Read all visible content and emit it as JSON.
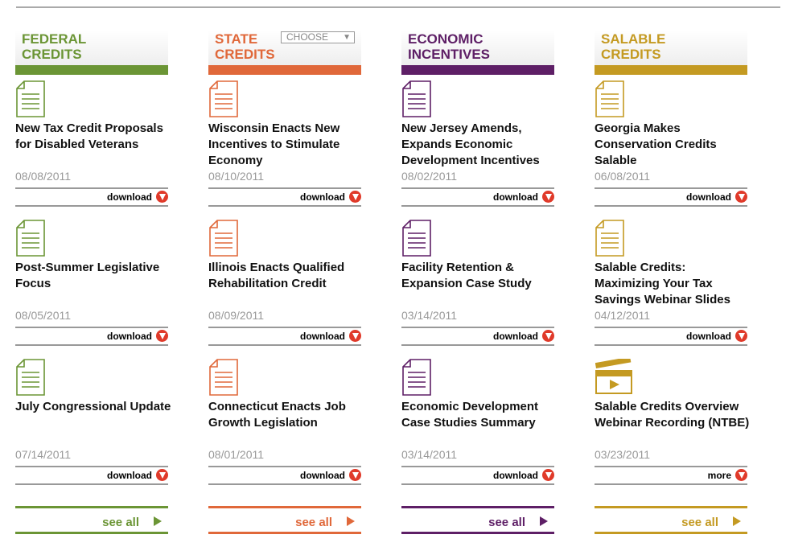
{
  "colors": {
    "federal": "#6b9535",
    "state": "#e0683a",
    "economic": "#5e1f66",
    "salable": "#c49a22"
  },
  "choose_label": "CHOOSE",
  "columns": [
    {
      "key": "federal",
      "title": [
        "FEDERAL",
        "CREDITS"
      ],
      "see_all": "see all",
      "items": [
        {
          "icon": "document-icon",
          "title": "New Tax Credit Proposals for Disabled Veterans",
          "date": "08/08/2011",
          "action": "download"
        },
        {
          "icon": "document-icon",
          "title": "Post-Summer Legislative Focus",
          "date": "08/05/2011",
          "action": "download"
        },
        {
          "icon": "document-icon",
          "title": "July Congressional Update",
          "date": "07/14/2011",
          "action": "download"
        }
      ]
    },
    {
      "key": "state",
      "title": [
        "STATE",
        "CREDITS"
      ],
      "see_all": "see all",
      "items": [
        {
          "icon": "document-icon",
          "title": "Wisconsin Enacts New Incentives to Stimulate Economy",
          "date": "08/10/2011",
          "action": "download"
        },
        {
          "icon": "document-icon",
          "title": "Illinois Enacts Qualified Rehabilitation Credit",
          "date": "08/09/2011",
          "action": "download"
        },
        {
          "icon": "document-icon",
          "title": "Connecticut Enacts Job Growth Legislation",
          "date": "08/01/2011",
          "action": "download"
        }
      ]
    },
    {
      "key": "economic",
      "title": [
        "ECONOMIC",
        "INCENTIVES"
      ],
      "see_all": "see all",
      "items": [
        {
          "icon": "document-icon",
          "title": "New Jersey Amends, Expands Economic Development Incentives",
          "date": "08/02/2011",
          "action": "download"
        },
        {
          "icon": "document-icon",
          "title": "Facility Retention & Expansion Case Study",
          "date": "03/14/2011",
          "action": "download"
        },
        {
          "icon": "document-icon",
          "title": "Economic Development Case Studies Summary",
          "date": "03/14/2011",
          "action": "download"
        }
      ]
    },
    {
      "key": "salable",
      "title": [
        "SALABLE",
        "CREDITS"
      ],
      "see_all": "see all",
      "items": [
        {
          "icon": "document-icon",
          "title": "Georgia Makes Conservation Credits Salable",
          "date": "06/08/2011",
          "action": "download"
        },
        {
          "icon": "document-icon",
          "title": "Salable Credits: Maximizing Your Tax Savings Webinar Slides",
          "date": "04/12/2011",
          "action": "download"
        },
        {
          "icon": "video-clapper-icon",
          "title": "Salable Credits Overview Webinar Recording (NTBE)",
          "date": "03/23/2011",
          "action": "more"
        }
      ]
    }
  ]
}
